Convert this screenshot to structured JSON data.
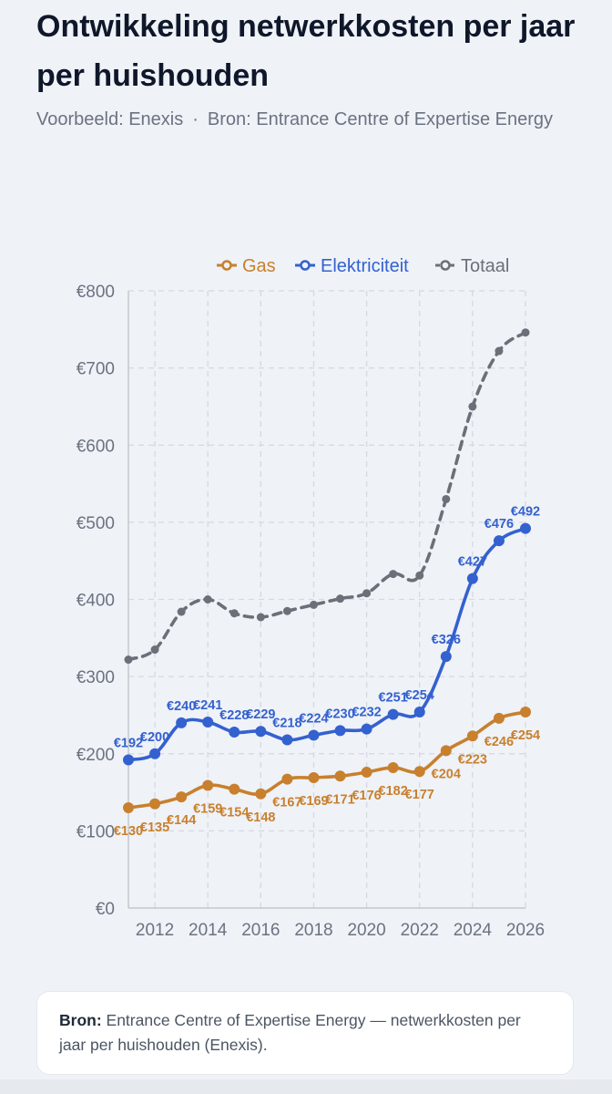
{
  "header": {
    "title": "Ontwikkeling netwerkkosten per jaar per huishouden",
    "subtitle_left": "Voorbeeld: Enexis",
    "subtitle_sep": "·",
    "subtitle_right": "Bron: Entrance Centre of Expertise Energy"
  },
  "footer": {
    "label": "Bron:",
    "text": "Entrance Centre of Expertise Energy — netwerkkosten per jaar per huishouden (Enexis)."
  },
  "colors": {
    "gas": "#c8802e",
    "elektriciteit": "#3461d0",
    "totaal": "#6b7078",
    "grid": "#d5d9e0",
    "axis_text": "#6b7280"
  },
  "chart_data": {
    "type": "line",
    "x": [
      2011,
      2012,
      2013,
      2014,
      2015,
      2016,
      2017,
      2018,
      2019,
      2020,
      2021,
      2022,
      2023,
      2024,
      2025,
      2026
    ],
    "x_ticks": [
      2012,
      2014,
      2016,
      2018,
      2020,
      2022,
      2024,
      2026
    ],
    "xlim": [
      2011,
      2026
    ],
    "y_ticks": [
      "€0",
      "€100",
      "€200",
      "€300",
      "€400",
      "€500",
      "€600",
      "€700",
      "€800"
    ],
    "ylim": [
      0,
      800
    ],
    "grid": true,
    "legend_position": "top",
    "series": [
      {
        "name": "Gas",
        "key": "gas",
        "style": "solid",
        "labels_shown": true,
        "values": [
          130,
          135,
          144,
          159,
          154,
          148,
          167,
          169,
          171,
          176,
          182,
          177,
          204,
          223,
          246,
          254
        ]
      },
      {
        "name": "Elektriciteit",
        "key": "elektriciteit",
        "style": "solid",
        "labels_shown": true,
        "values": [
          192,
          200,
          240,
          241,
          228,
          229,
          218,
          224,
          230,
          232,
          251,
          254,
          326,
          427,
          476,
          492
        ]
      },
      {
        "name": "Totaal",
        "key": "totaal",
        "style": "dashed",
        "labels_shown": false,
        "values": [
          322,
          335,
          384,
          400,
          382,
          377,
          385,
          393,
          401,
          408,
          433,
          431,
          530,
          650,
          722,
          746
        ]
      }
    ]
  }
}
